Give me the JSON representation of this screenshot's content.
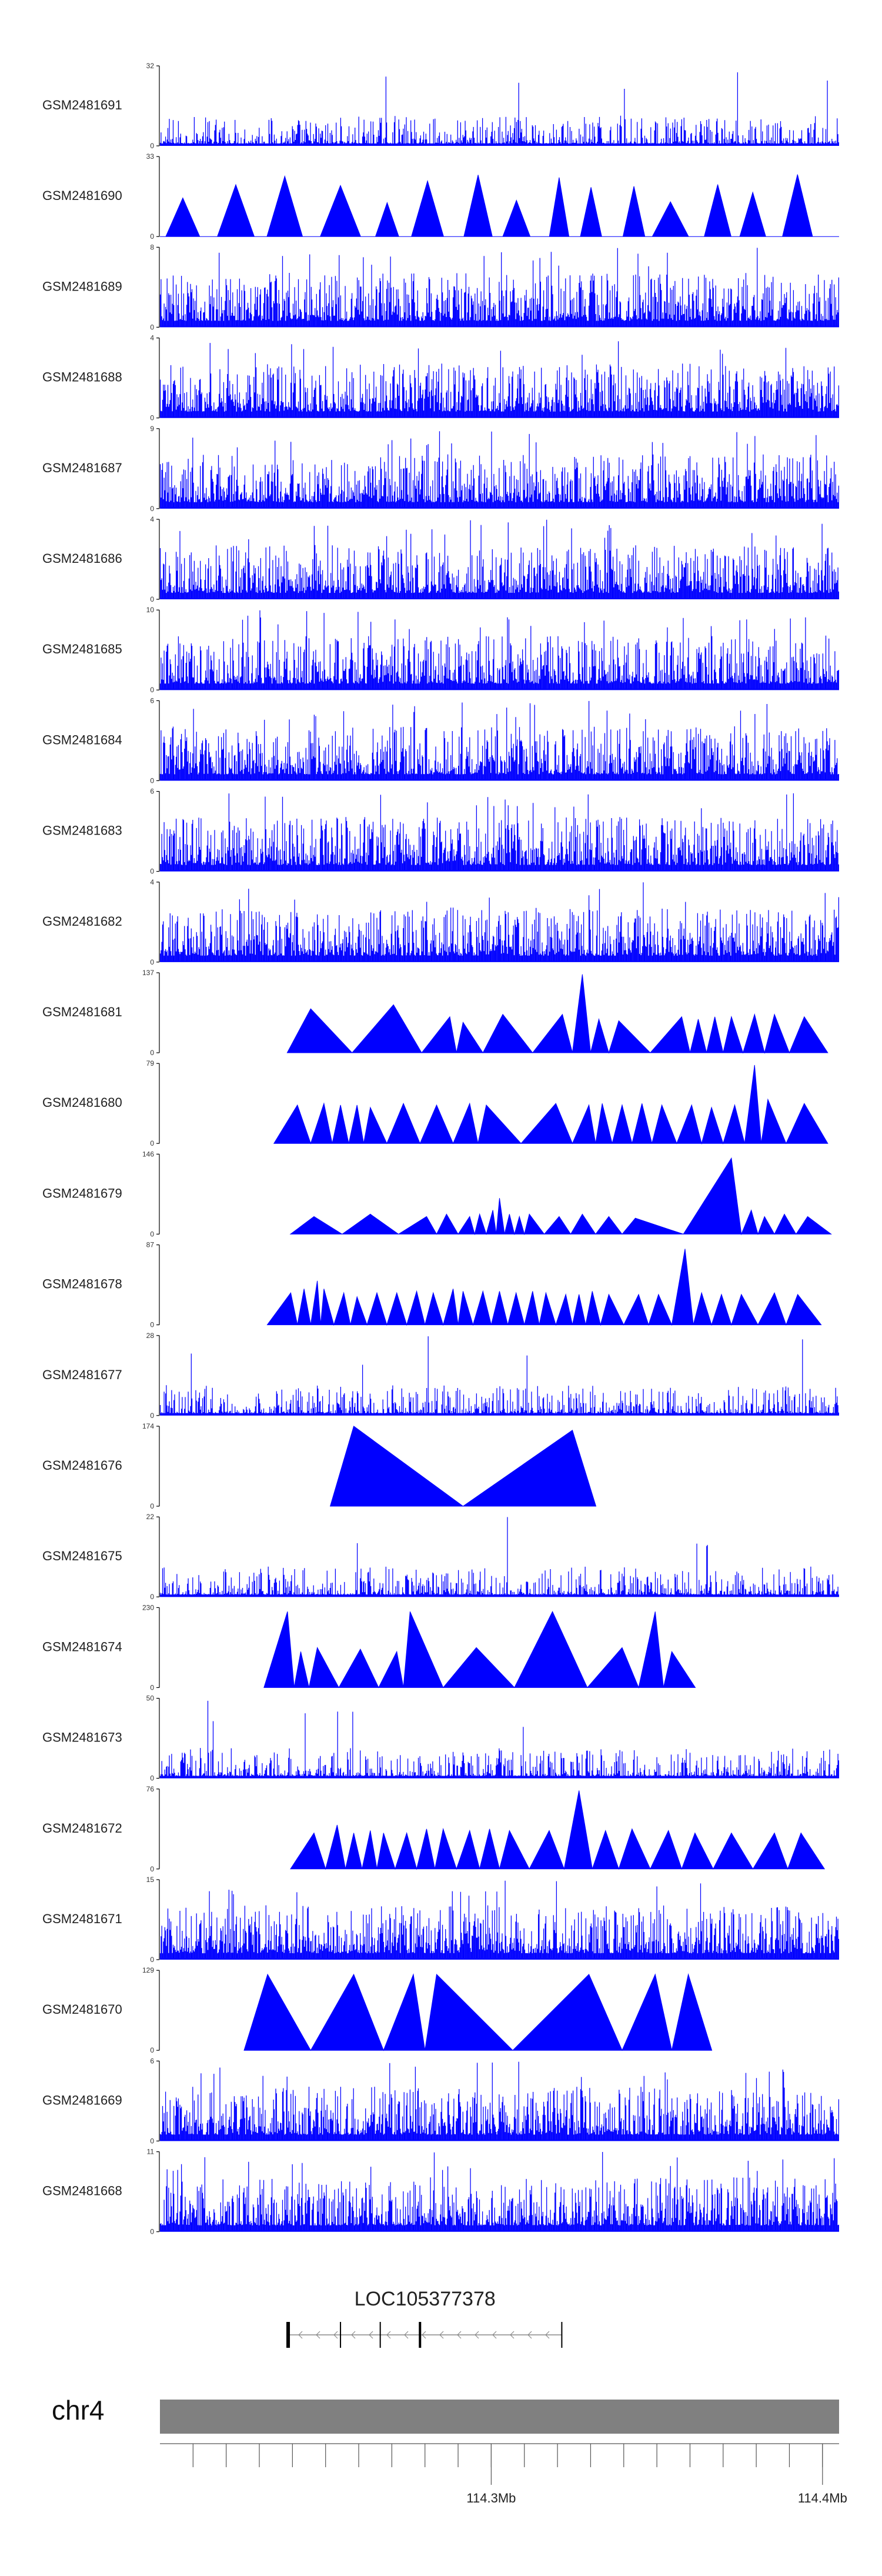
{
  "chart_data": {
    "type": "area",
    "title": "",
    "colors": {
      "signal": "#0000ff",
      "axis": "#000000",
      "ideogram": "#808080",
      "gene": "#000000",
      "intron": "#888888"
    },
    "tracks": [
      {
        "name": "GSM2481691",
        "ymax": 32,
        "ymin": 0,
        "style": "spiky"
      },
      {
        "name": "GSM2481690",
        "ymax": 33,
        "ymin": 0,
        "style": "triangles"
      },
      {
        "name": "GSM2481689",
        "ymax": 8,
        "ymin": 0,
        "style": "dense"
      },
      {
        "name": "GSM2481688",
        "ymax": 4,
        "ymin": 0,
        "style": "dense"
      },
      {
        "name": "GSM2481687",
        "ymax": 9,
        "ymin": 0,
        "style": "dense"
      },
      {
        "name": "GSM2481686",
        "ymax": 4,
        "ymin": 0,
        "style": "dense"
      },
      {
        "name": "GSM2481685",
        "ymax": 10,
        "ymin": 0,
        "style": "dense"
      },
      {
        "name": "GSM2481684",
        "ymax": 6,
        "ymin": 0,
        "style": "dense"
      },
      {
        "name": "GSM2481683",
        "ymax": 6,
        "ymin": 0,
        "style": "dense"
      },
      {
        "name": "GSM2481682",
        "ymax": 4,
        "ymin": 0,
        "style": "dense"
      },
      {
        "name": "GSM2481681",
        "ymax": 137,
        "ymin": 0,
        "style": "triangles",
        "peaks": [
          [
            114.2455,
            0.55
          ],
          [
            114.2705,
            0.6
          ],
          [
            114.2875,
            0.45
          ],
          [
            114.2915,
            0.38
          ],
          [
            114.3035,
            0.48
          ],
          [
            114.3215,
            0.48
          ],
          [
            114.3275,
            0.98
          ],
          [
            114.3325,
            0.42
          ],
          [
            114.3385,
            0.4
          ],
          [
            114.3575,
            0.45
          ],
          [
            114.3625,
            0.42
          ],
          [
            114.3675,
            0.45
          ],
          [
            114.3725,
            0.45
          ],
          [
            114.3795,
            0.48
          ],
          [
            114.3855,
            0.48
          ],
          [
            114.3945,
            0.45
          ]
        ]
      },
      {
        "name": "GSM2481680",
        "ymax": 79,
        "ymin": 0,
        "style": "triangles",
        "peaks": [
          [
            114.2415,
            0.48
          ],
          [
            114.2495,
            0.5
          ],
          [
            114.2545,
            0.48
          ],
          [
            114.2595,
            0.48
          ],
          [
            114.2635,
            0.45
          ],
          [
            114.2735,
            0.5
          ],
          [
            114.2835,
            0.48
          ],
          [
            114.2935,
            0.5
          ],
          [
            114.2985,
            0.48
          ],
          [
            114.3195,
            0.5
          ],
          [
            114.3295,
            0.48
          ],
          [
            114.3335,
            0.5
          ],
          [
            114.3395,
            0.48
          ],
          [
            114.3455,
            0.5
          ],
          [
            114.3515,
            0.48
          ],
          [
            114.3605,
            0.48
          ],
          [
            114.3665,
            0.45
          ],
          [
            114.3735,
            0.48
          ],
          [
            114.3795,
            0.98
          ],
          [
            114.3835,
            0.55
          ],
          [
            114.3945,
            0.5
          ]
        ]
      },
      {
        "name": "GSM2481679",
        "ymax": 146,
        "ymin": 0,
        "style": "triangles",
        "peaks": [
          [
            114.2465,
            0.22
          ],
          [
            114.2635,
            0.25
          ],
          [
            114.2805,
            0.22
          ],
          [
            114.2865,
            0.25
          ],
          [
            114.2935,
            0.22
          ],
          [
            114.2965,
            0.25
          ],
          [
            114.3005,
            0.3
          ],
          [
            114.3025,
            0.45
          ],
          [
            114.3055,
            0.25
          ],
          [
            114.3085,
            0.22
          ],
          [
            114.3115,
            0.25
          ],
          [
            114.3205,
            0.22
          ],
          [
            114.3275,
            0.25
          ],
          [
            114.3355,
            0.22
          ],
          [
            114.3435,
            0.2
          ],
          [
            114.3725,
            0.95
          ],
          [
            114.3785,
            0.3
          ],
          [
            114.3825,
            0.22
          ],
          [
            114.3885,
            0.25
          ],
          [
            114.3955,
            0.22
          ]
        ]
      },
      {
        "name": "GSM2481678",
        "ymax": 87,
        "ymin": 0,
        "style": "triangles",
        "peaks": [
          [
            114.2395,
            0.4
          ],
          [
            114.2435,
            0.45
          ],
          [
            114.2475,
            0.55
          ],
          [
            114.2495,
            0.45
          ],
          [
            114.2555,
            0.4
          ],
          [
            114.2595,
            0.35
          ],
          [
            114.2655,
            0.4
          ],
          [
            114.2715,
            0.4
          ],
          [
            114.2775,
            0.42
          ],
          [
            114.2825,
            0.4
          ],
          [
            114.2885,
            0.45
          ],
          [
            114.2915,
            0.42
          ],
          [
            114.2975,
            0.42
          ],
          [
            114.3025,
            0.42
          ],
          [
            114.3075,
            0.4
          ],
          [
            114.3125,
            0.42
          ],
          [
            114.3165,
            0.4
          ],
          [
            114.3225,
            0.38
          ],
          [
            114.3265,
            0.38
          ],
          [
            114.3305,
            0.42
          ],
          [
            114.3355,
            0.38
          ],
          [
            114.3445,
            0.38
          ],
          [
            114.3505,
            0.38
          ],
          [
            114.3585,
            0.95
          ],
          [
            114.3635,
            0.4
          ],
          [
            114.3695,
            0.38
          ],
          [
            114.3755,
            0.38
          ],
          [
            114.3855,
            0.4
          ],
          [
            114.3925,
            0.38
          ]
        ]
      },
      {
        "name": "GSM2481677",
        "ymax": 28,
        "ymin": 0,
        "style": "spiky"
      },
      {
        "name": "GSM2481676",
        "ymax": 174,
        "ymin": 0,
        "style": "triangles",
        "peaks": [
          [
            114.2585,
            1.0
          ],
          [
            114.3245,
            0.95
          ]
        ]
      },
      {
        "name": "GSM2481675",
        "ymax": 22,
        "ymin": 0,
        "style": "spiky"
      },
      {
        "name": "GSM2481674",
        "ymax": 230,
        "ymin": 0,
        "style": "triangles",
        "peaks": [
          [
            114.2385,
            0.95
          ],
          [
            114.2425,
            0.45
          ],
          [
            114.2475,
            0.5
          ],
          [
            114.2605,
            0.48
          ],
          [
            114.2715,
            0.45
          ],
          [
            114.2755,
            0.95
          ],
          [
            114.2955,
            0.5
          ],
          [
            114.3185,
            0.95
          ],
          [
            114.3395,
            0.5
          ],
          [
            114.3495,
            0.95
          ],
          [
            114.3545,
            0.45
          ]
        ]
      },
      {
        "name": "GSM2481673",
        "ymax": 50,
        "ymin": 0,
        "style": "spiky"
      },
      {
        "name": "GSM2481672",
        "ymax": 76,
        "ymin": 0,
        "style": "triangles",
        "peaks": [
          [
            114.2465,
            0.45
          ],
          [
            114.2535,
            0.55
          ],
          [
            114.2585,
            0.45
          ],
          [
            114.2635,
            0.48
          ],
          [
            114.2675,
            0.45
          ],
          [
            114.2745,
            0.45
          ],
          [
            114.2805,
            0.5
          ],
          [
            114.2855,
            0.5
          ],
          [
            114.2935,
            0.48
          ],
          [
            114.2995,
            0.5
          ],
          [
            114.3055,
            0.48
          ],
          [
            114.3175,
            0.48
          ],
          [
            114.3265,
            0.98
          ],
          [
            114.3345,
            0.48
          ],
          [
            114.3425,
            0.5
          ],
          [
            114.3535,
            0.48
          ],
          [
            114.3615,
            0.45
          ],
          [
            114.3725,
            0.45
          ],
          [
            114.3855,
            0.45
          ],
          [
            114.3935,
            0.45
          ]
        ]
      },
      {
        "name": "GSM2481671",
        "ymax": 15,
        "ymin": 0,
        "style": "dense"
      },
      {
        "name": "GSM2481670",
        "ymax": 129,
        "ymin": 0,
        "style": "triangles",
        "peaks": [
          [
            114.2325,
            0.95
          ],
          [
            114.2585,
            0.95
          ],
          [
            114.2765,
            0.95
          ],
          [
            114.2835,
            0.95
          ],
          [
            114.3295,
            0.95
          ],
          [
            114.3495,
            0.95
          ],
          [
            114.3595,
            0.95
          ]
        ]
      },
      {
        "name": "GSM2481669",
        "ymax": 6,
        "ymin": 0,
        "style": "dense"
      },
      {
        "name": "GSM2481668",
        "ymax": 11,
        "ymin": 0,
        "style": "dense"
      }
    ],
    "gene": {
      "name": "LOC105377378",
      "start": 114.2387,
      "end": 114.3213,
      "strand": "-",
      "exons": [
        114.2387,
        114.2545,
        114.2665,
        114.2785,
        114.3213
      ]
    },
    "chromosome": {
      "name": "chr4"
    },
    "axis": {
      "range": [
        114.2,
        114.405
      ],
      "tick_positions": [
        114.21,
        114.22,
        114.23,
        114.24,
        114.25,
        114.26,
        114.27,
        114.28,
        114.29,
        114.3,
        114.31,
        114.32,
        114.33,
        114.34,
        114.35,
        114.36,
        114.37,
        114.38,
        114.39,
        114.4
      ],
      "labels": [
        {
          "value": 114.3,
          "text": "114.3Mb"
        },
        {
          "value": 114.4,
          "text": "114.4Mb"
        }
      ]
    }
  }
}
